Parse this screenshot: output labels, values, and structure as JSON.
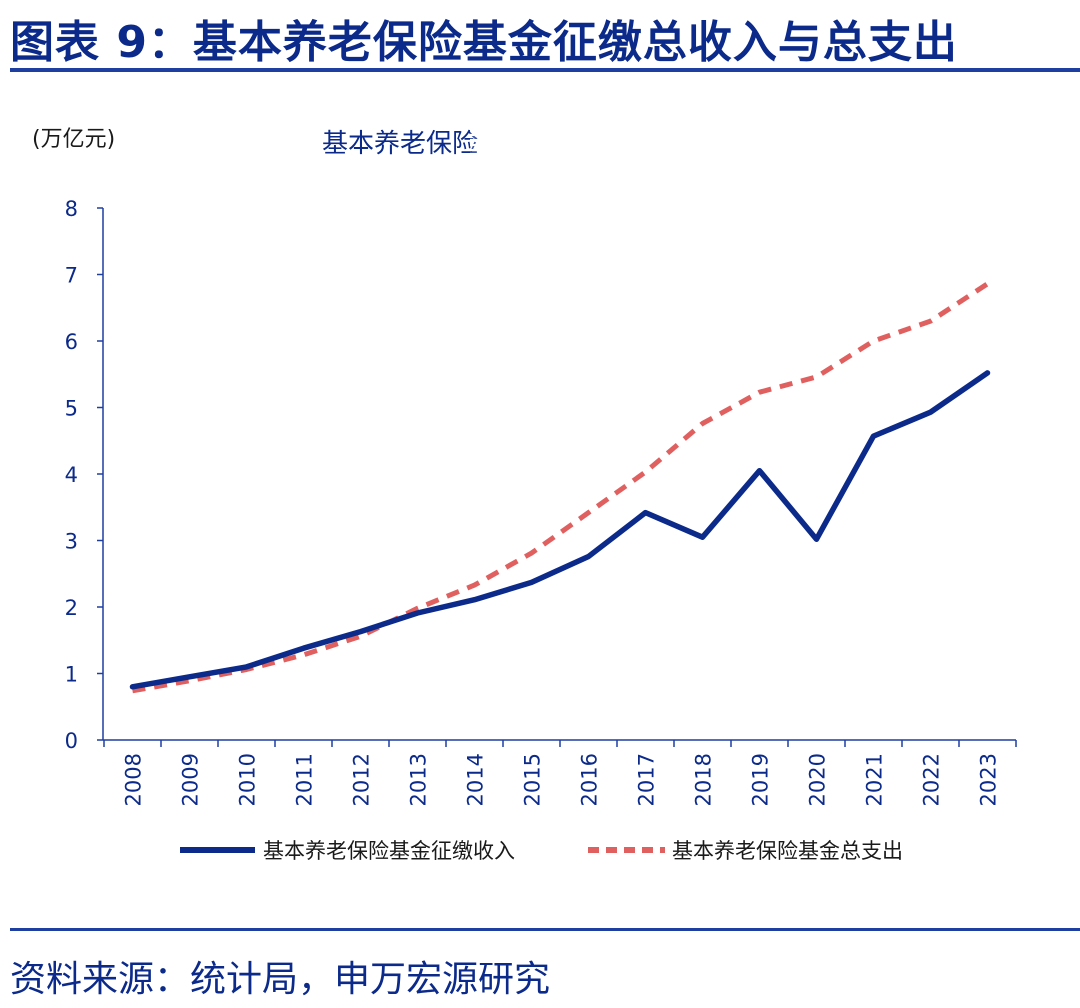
{
  "header": {
    "title": "图表 9：基本养老保险基金征缴总收入与总支出"
  },
  "footer": {
    "source": "资料来源：统计局，申万宏源研究"
  },
  "chart_data": {
    "type": "line",
    "title": "基本养老保险",
    "ylabel": "(万亿元)",
    "xlabel": "",
    "ylim": [
      0,
      8
    ],
    "yticks": [
      0,
      1,
      2,
      3,
      4,
      5,
      6,
      7,
      8
    ],
    "grid": false,
    "legend_position": "bottom",
    "categories": [
      "2008",
      "2009",
      "2010",
      "2011",
      "2012",
      "2013",
      "2014",
      "2015",
      "2016",
      "2017",
      "2018",
      "2019",
      "2020",
      "2021",
      "2022",
      "2023"
    ],
    "series": [
      {
        "name": "基本养老保险基金征缴收入",
        "style": "solid",
        "color": "#0b2a8a",
        "values": [
          0.8,
          0.95,
          1.1,
          1.38,
          1.63,
          1.91,
          2.11,
          2.37,
          2.76,
          3.42,
          3.05,
          4.05,
          3.02,
          4.57,
          4.93,
          5.52
        ]
      },
      {
        "name": "基本养老保险基金总支出",
        "style": "dashed",
        "color": "#e06060",
        "values": [
          0.74,
          0.89,
          1.06,
          1.28,
          1.56,
          1.98,
          2.33,
          2.81,
          3.42,
          4.03,
          4.76,
          5.23,
          5.46,
          6.0,
          6.3,
          6.86
        ]
      }
    ]
  }
}
